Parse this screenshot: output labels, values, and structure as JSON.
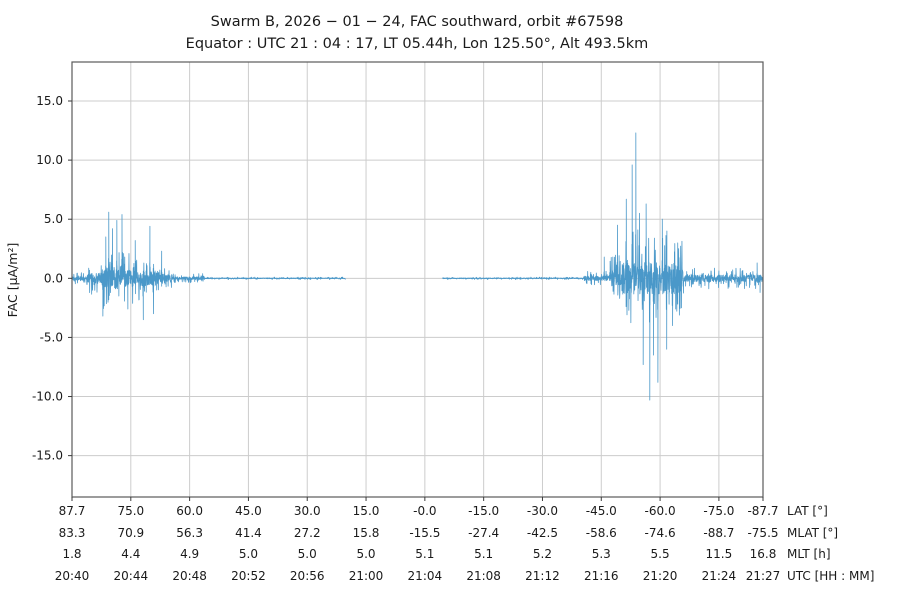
{
  "header": {
    "title": "Swarm B, 2026 − 01 − 24, FAC southward, orbit #67598",
    "subtitle": "Equator : UTC 21 : 04 : 17, LT 05.44h, Lon 125.50°, Alt 493.5km"
  },
  "chart_data": {
    "type": "line",
    "title": "Swarm B, 2026 − 01 − 24, FAC southward, orbit #67598",
    "subtitle": "Equator : UTC 21 : 04 : 17, LT 05.44h, Lon 125.50°, Alt 493.5km",
    "ylabel": "FAC [μA/m²]",
    "line_color": "#4a98c9",
    "grid_color": "#cccccc",
    "spine_color": "#5a5a5a",
    "tick_color": "#3a3a3a",
    "ylim": [
      -18.5,
      18.3
    ],
    "yticks": [
      15.0,
      10.0,
      5.0,
      0.0,
      -5.0,
      -10.0,
      -15.0
    ],
    "ytick_labels": [
      "15.0",
      "10.0",
      "5.0",
      "0.0",
      "-5.0",
      "-10.0",
      "-15.0"
    ],
    "x_minutes_range": [
      0,
      47
    ],
    "xtick_minutes": [
      0,
      4,
      8,
      12,
      16,
      20,
      24,
      28,
      32,
      36,
      40,
      44,
      47
    ],
    "grid_on": true,
    "legend": "none",
    "axis_rows": [
      {
        "caption": "LAT [°]",
        "labels": [
          "87.7",
          "75.0",
          "60.0",
          "45.0",
          "30.0",
          "15.0",
          "-0.0",
          "-15.0",
          "-30.0",
          "-45.0",
          "-60.0",
          "-75.0",
          "-87.7"
        ]
      },
      {
        "caption": "MLAT [°]",
        "labels": [
          "83.3",
          "70.9",
          "56.3",
          "41.4",
          "27.2",
          "15.8",
          "-15.5",
          "-27.4",
          "-42.5",
          "-58.6",
          "-74.6",
          "-88.7",
          "-75.5"
        ]
      },
      {
        "caption": "MLT [h]",
        "labels": [
          "1.8",
          "4.4",
          "4.9",
          "5.0",
          "5.0",
          "5.0",
          "5.1",
          "5.1",
          "5.2",
          "5.3",
          "5.5",
          "11.5",
          "16.8"
        ]
      },
      {
        "caption": "UTC [HH : MM]",
        "labels": [
          "20:40",
          "20:44",
          "20:48",
          "20:52",
          "20:56",
          "21:00",
          "21:04",
          "21:08",
          "21:12",
          "21:16",
          "21:20",
          "21:24",
          "21:27"
        ]
      }
    ],
    "series": {
      "name": "FAC southward",
      "units": "μA/m²",
      "seed": 42,
      "samples_per_minute": 80,
      "baseline": 0.0,
      "max_value": 12.3,
      "min_value": -10.3,
      "segments": [
        {
          "t0": 0.0,
          "t1": 1.0,
          "amp": 0.5
        },
        {
          "t0": 1.0,
          "t1": 1.9,
          "amp": 1.4
        },
        {
          "t0": 1.9,
          "t1": 3.1,
          "amp": 2.8
        },
        {
          "t0": 3.1,
          "t1": 4.2,
          "amp": 2.2
        },
        {
          "t0": 4.2,
          "t1": 5.9,
          "amp": 2.0
        },
        {
          "t0": 5.9,
          "t1": 6.8,
          "amp": 1.1
        },
        {
          "t0": 6.8,
          "t1": 9.0,
          "amp": 0.4
        },
        {
          "t0": 9.0,
          "t1": 18.6,
          "amp": 0.1
        },
        {
          "t0": 25.2,
          "t1": 34.8,
          "amp": 0.1
        },
        {
          "t0": 34.8,
          "t1": 36.6,
          "amp": 0.6
        },
        {
          "t0": 36.6,
          "t1": 37.4,
          "amp": 2.0
        },
        {
          "t0": 37.4,
          "t1": 41.6,
          "amp": 4.2
        },
        {
          "t0": 41.6,
          "t1": 44.0,
          "amp": 0.9
        },
        {
          "t0": 44.0,
          "t1": 47.0,
          "amp": 0.9
        }
      ],
      "peaks": [
        {
          "t": 2.1,
          "v": -3.2
        },
        {
          "t": 2.3,
          "v": 3.5
        },
        {
          "t": 2.5,
          "v": 5.6
        },
        {
          "t": 2.75,
          "v": 4.2
        },
        {
          "t": 3.05,
          "v": 4.9
        },
        {
          "t": 3.4,
          "v": 5.4
        },
        {
          "t": 3.8,
          "v": -2.6
        },
        {
          "t": 4.3,
          "v": 3.2
        },
        {
          "t": 4.85,
          "v": -3.5
        },
        {
          "t": 5.3,
          "v": 4.4
        },
        {
          "t": 5.55,
          "v": -3.0
        },
        {
          "t": 6.1,
          "v": 2.3
        },
        {
          "t": 36.2,
          "v": 1.8
        },
        {
          "t": 37.1,
          "v": 4.5
        },
        {
          "t": 37.7,
          "v": 6.7
        },
        {
          "t": 38.1,
          "v": 9.6
        },
        {
          "t": 38.35,
          "v": 12.3
        },
        {
          "t": 38.6,
          "v": 5.5
        },
        {
          "t": 38.85,
          "v": -7.3
        },
        {
          "t": 39.05,
          "v": 6.3
        },
        {
          "t": 39.3,
          "v": -10.3
        },
        {
          "t": 39.55,
          "v": -6.5
        },
        {
          "t": 39.85,
          "v": -8.8
        },
        {
          "t": 40.15,
          "v": 5.0
        },
        {
          "t": 40.45,
          "v": -6.0
        },
        {
          "t": 40.85,
          "v": -4.0
        },
        {
          "t": 41.2,
          "v": 3.0
        },
        {
          "t": 41.45,
          "v": -2.5
        },
        {
          "t": 46.6,
          "v": 1.3
        },
        {
          "t": 46.8,
          "v": -1.2
        }
      ]
    }
  }
}
